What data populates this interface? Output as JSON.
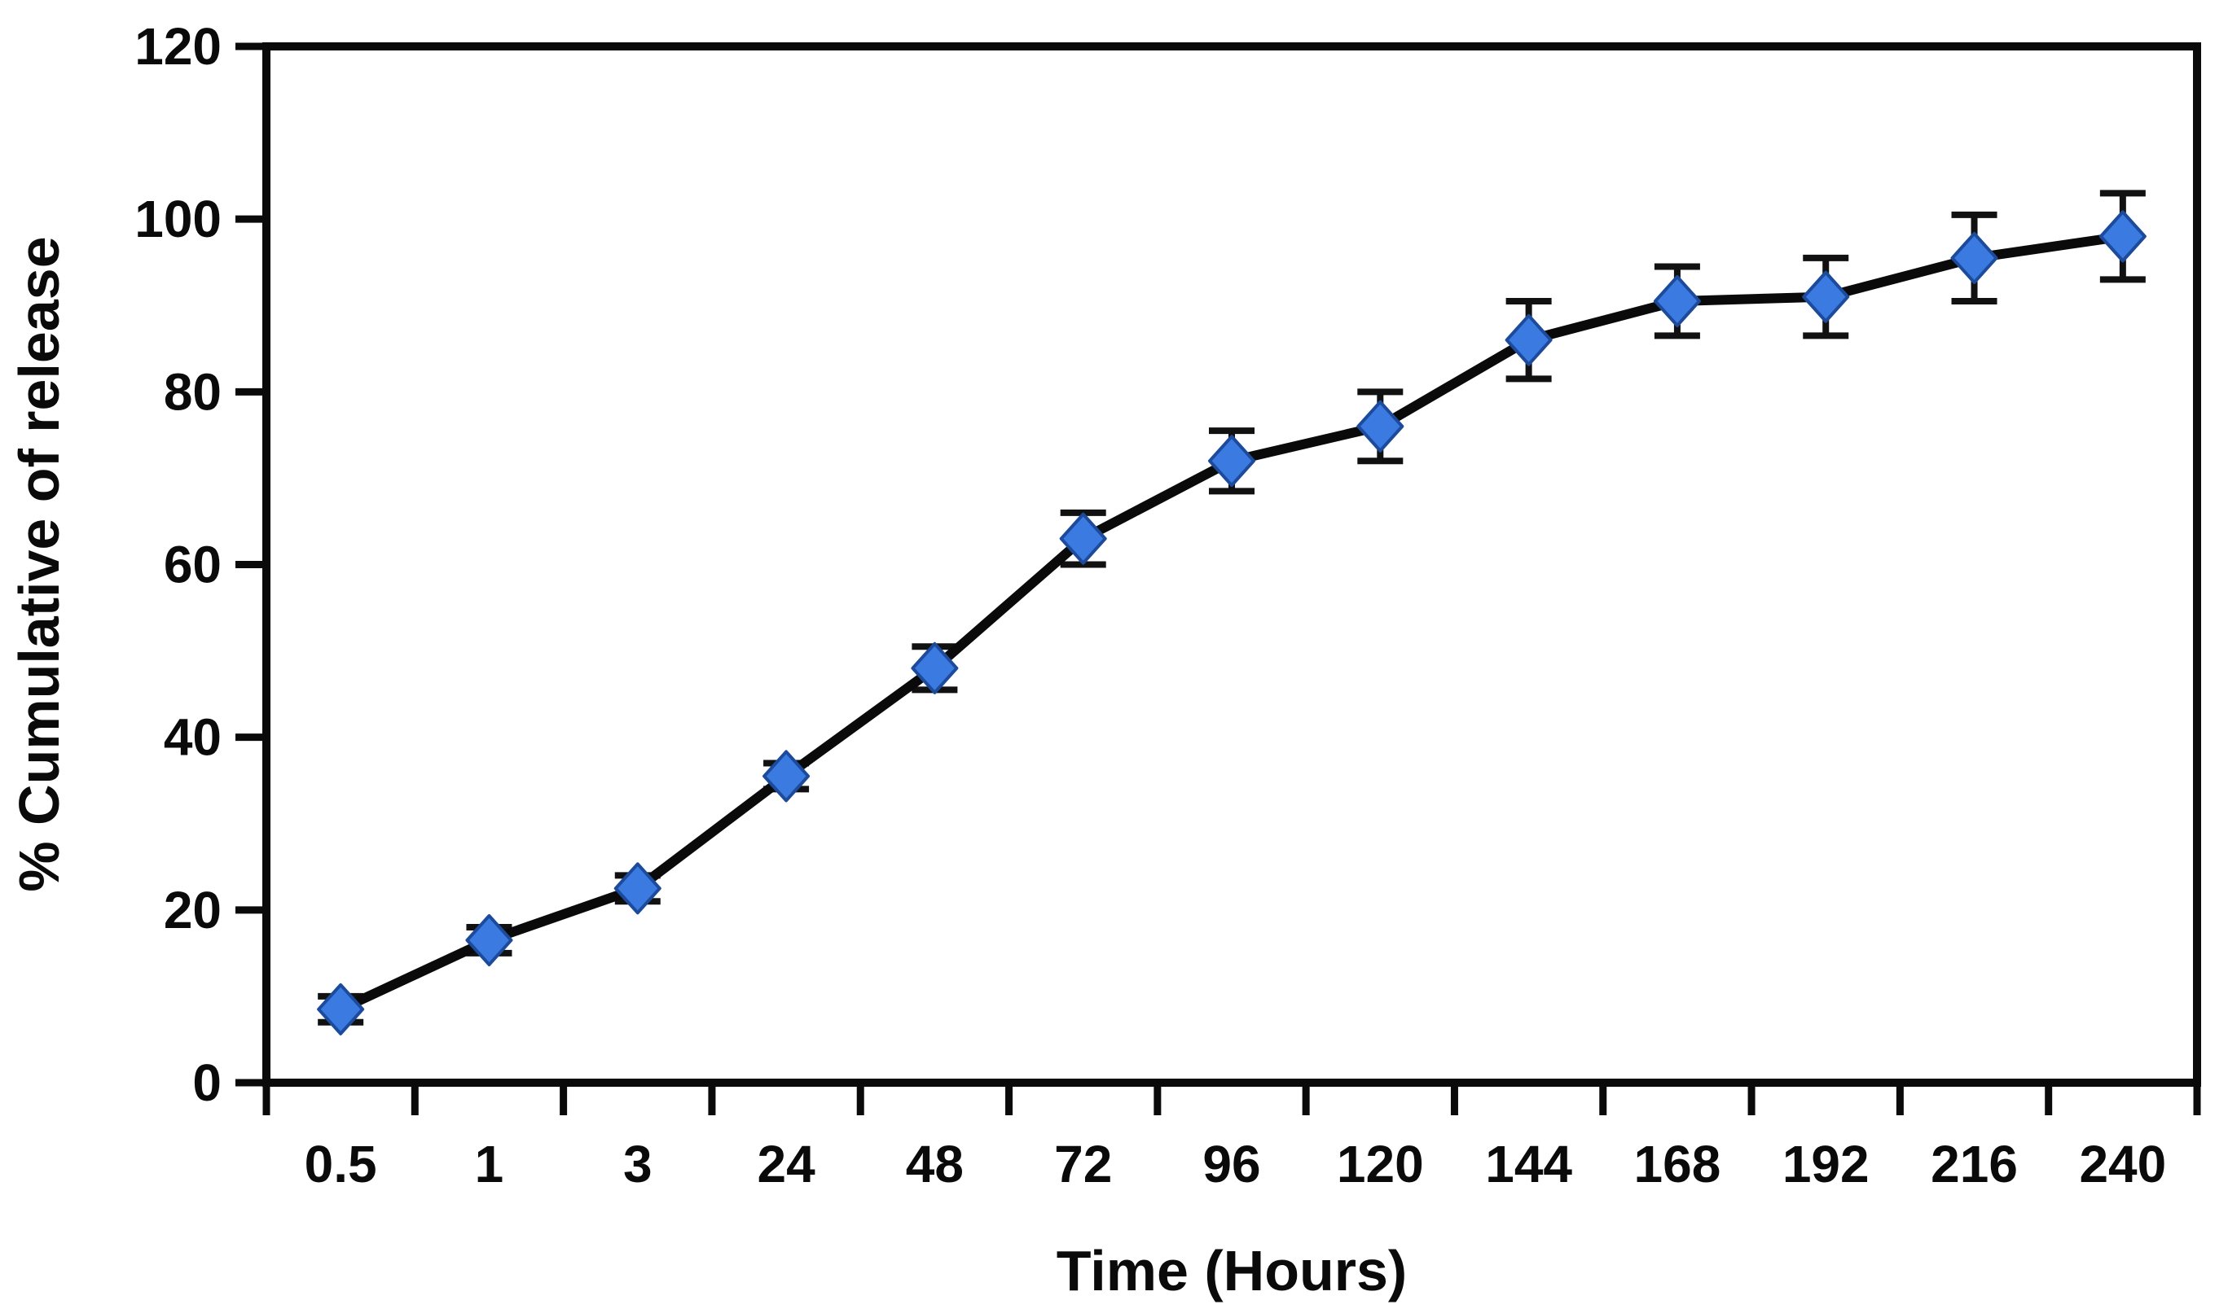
{
  "chart_data": {
    "type": "line",
    "title": "",
    "xlabel": "Time (Hours)",
    "ylabel": "% Cumulative of release",
    "categories": [
      "0.5",
      "1",
      "3",
      "24",
      "48",
      "72",
      "96",
      "120",
      "144",
      "168",
      "192",
      "216",
      "240"
    ],
    "series": [
      {
        "name": "% cumulative release",
        "values": [
          8.5,
          16.5,
          22.5,
          35.5,
          48,
          63,
          72,
          76,
          86,
          90.5,
          91,
          95.5,
          98
        ],
        "error_bars": [
          1.5,
          1.5,
          1.5,
          1.5,
          2.5,
          3,
          3.5,
          4,
          4.5,
          4,
          4.5,
          5,
          5
        ]
      }
    ],
    "ylim": [
      0,
      120
    ],
    "y_ticks": [
      0,
      20,
      40,
      60,
      80,
      100,
      120
    ],
    "grid": false,
    "legend": false,
    "marker": "diamond",
    "colors": {
      "line": "#0a0a0a",
      "axis": "#0a0a0a",
      "text": "#0a0a0a",
      "error_bar": "#111111",
      "marker_fill": "#3b7ae0",
      "marker_stroke": "#1d4b9b"
    }
  }
}
